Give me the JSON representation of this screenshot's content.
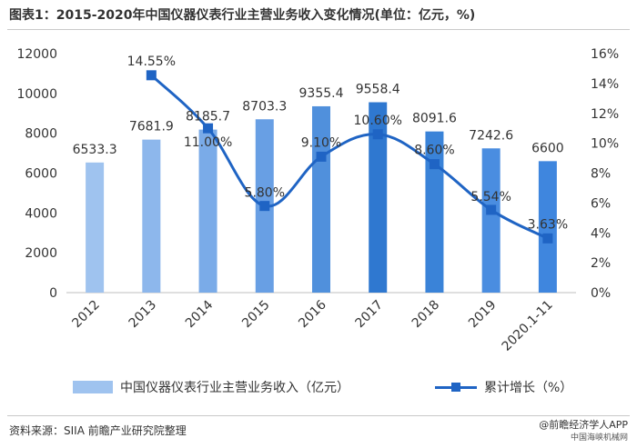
{
  "title": "图表1：2015-2020年中国仪器仪表行业主营业务收入变化情况(单位：亿元，%)",
  "chart_data": {
    "type": "bar+line",
    "categories": [
      "2012",
      "2013",
      "2014",
      "2015",
      "2016",
      "2017",
      "2018",
      "2019",
      "2020.1-11"
    ],
    "bar_series": {
      "name": "中国仪器仪表行业主营业务收入（亿元）",
      "values": [
        6533.3,
        7681.9,
        8185.7,
        8703.3,
        9355.4,
        9558.4,
        8091.6,
        7242.6,
        6600
      ],
      "labels": [
        "6533.3",
        "7681.9",
        "8185.7",
        "8703.3",
        "9355.4",
        "9558.4",
        "8091.6",
        "7242.6",
        "6600"
      ],
      "colors": [
        "#9fc3ef",
        "#8db7ec",
        "#7aabe8",
        "#689fe4",
        "#5090dc",
        "#2f78d0",
        "#3a83d8",
        "#4a8de0",
        "#3f86de"
      ]
    },
    "line_series": {
      "name": "累计增长（%）",
      "x_index": [
        1,
        2,
        3,
        4,
        5,
        6,
        7,
        8
      ],
      "values": [
        14.55,
        11.0,
        5.8,
        9.1,
        10.6,
        8.6,
        5.54,
        3.63
      ],
      "labels": [
        "14.55%",
        "11.00%",
        "5.80%",
        "9.10%",
        "10.60%",
        "8.60%",
        "5.54%",
        "3.63%"
      ],
      "color": "#1f64c4"
    },
    "y_left": {
      "min": 0,
      "max": 12000,
      "ticks": [
        "0",
        "2000",
        "4000",
        "6000",
        "8000",
        "10000",
        "12000"
      ]
    },
    "y_right": {
      "min": 0,
      "max": 16,
      "ticks": [
        "0%",
        "2%",
        "4%",
        "6%",
        "8%",
        "10%",
        "12%",
        "14%",
        "16%"
      ]
    },
    "grid": false,
    "legend_position": "bottom"
  },
  "source": "资料来源：SIIA 前瞻产业研究院整理",
  "brand": {
    "name": "@前瞻经济学人APP",
    "sub": "中国海峡机械网"
  }
}
